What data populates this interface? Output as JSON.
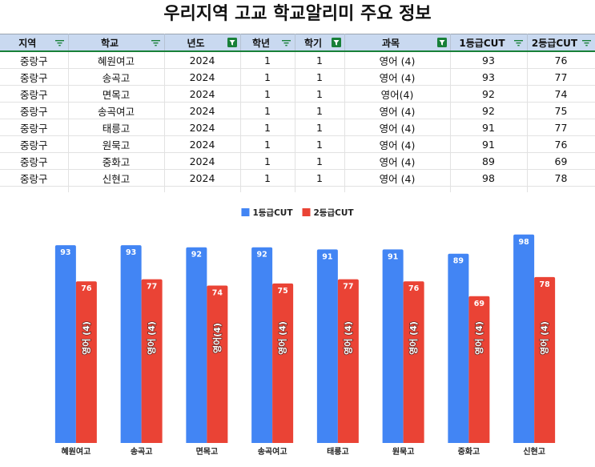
{
  "title": "우리지역 고교 학교알리미 주요 정보",
  "table": {
    "columns": [
      {
        "label": "지역",
        "filter": "available"
      },
      {
        "label": "학교",
        "filter": "available"
      },
      {
        "label": "년도",
        "filter": "applied"
      },
      {
        "label": "학년",
        "filter": "available"
      },
      {
        "label": "학기",
        "filter": "applied"
      },
      {
        "label": "과목",
        "filter": "applied"
      },
      {
        "label": "1등급CUT",
        "filter": "available"
      },
      {
        "label": "2등급CUT",
        "filter": "available"
      }
    ],
    "rows": [
      [
        "중랑구",
        "혜원여고",
        "2024",
        "1",
        "1",
        "영어 (4)",
        "93",
        "76"
      ],
      [
        "중랑구",
        "송곡고",
        "2024",
        "1",
        "1",
        "영어 (4)",
        "93",
        "77"
      ],
      [
        "중랑구",
        "면목고",
        "2024",
        "1",
        "1",
        "영어(4)",
        "92",
        "74"
      ],
      [
        "중랑구",
        "송곡여고",
        "2024",
        "1",
        "1",
        "영어 (4)",
        "92",
        "75"
      ],
      [
        "중랑구",
        "태릉고",
        "2024",
        "1",
        "1",
        "영어 (4)",
        "91",
        "77"
      ],
      [
        "중랑구",
        "원묵고",
        "2024",
        "1",
        "1",
        "영어 (4)",
        "91",
        "76"
      ],
      [
        "중랑구",
        "중화고",
        "2024",
        "1",
        "1",
        "영어 (4)",
        "89",
        "69"
      ],
      [
        "중랑구",
        "신현고",
        "2024",
        "1",
        "1",
        "영어 (4)",
        "98",
        "78"
      ]
    ]
  },
  "icons": {
    "filter_available": "filter-lines-icon",
    "filter_applied": "filter-funnel-icon"
  },
  "colors": {
    "header_bg": "#c9d9f0",
    "filter_green": "#188038",
    "series_1": "#4285f4",
    "series_2": "#ea4335"
  },
  "chart_data": {
    "type": "bar",
    "title": "",
    "xlabel": "",
    "ylabel": "",
    "categories": [
      "혜원여고",
      "송곡고",
      "면목고",
      "송곡여고",
      "태릉고",
      "원묵고",
      "중화고",
      "신현고"
    ],
    "series": [
      {
        "name": "1등급CUT",
        "color": "#4285f4",
        "values": [
          93,
          93,
          92,
          92,
          91,
          91,
          89,
          98
        ]
      },
      {
        "name": "2등급CUT",
        "color": "#ea4335",
        "values": [
          76,
          77,
          74,
          75,
          77,
          76,
          69,
          78
        ],
        "inner_labels": [
          "영어 (4)",
          "영어 (4)",
          "영어(4)",
          "영어 (4)",
          "영어 (4)",
          "영어 (4)",
          "영어 (4)",
          "영어 (4)"
        ]
      }
    ],
    "ylim": [
      0,
      100
    ],
    "grid": false,
    "legend": "top-center",
    "data_labels": true
  }
}
